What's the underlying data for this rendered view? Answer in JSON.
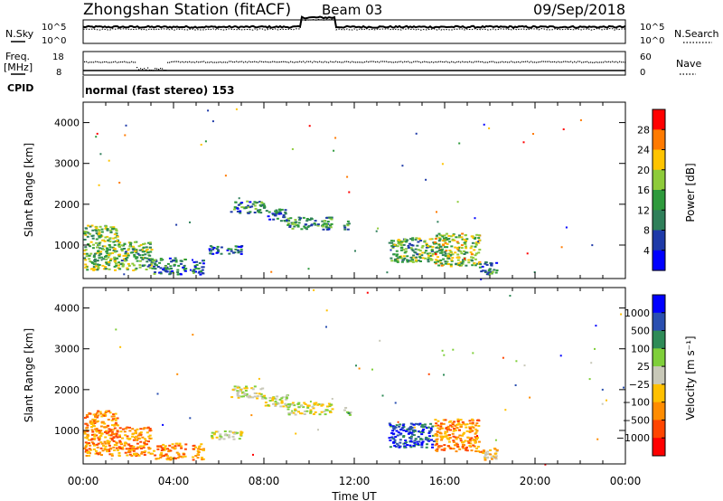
{
  "header": {
    "title": "Zhongshan Station (fitACF)",
    "beam": "Beam 03",
    "date": "09/Sep/2018"
  },
  "status_panels": {
    "nsky_label": "N.Sky",
    "nsky_ticks": [
      "10^5",
      "10^0"
    ],
    "nsearch_label": "N.Search",
    "nsearch_ticks": [
      "10^5",
      "10^0"
    ],
    "freq_label": "Freq.",
    "freq_unit": "[MHz]",
    "freq_ticks": [
      "18",
      "8"
    ],
    "nave_label": "Nave",
    "nave_ticks": [
      "60",
      "0"
    ],
    "cpid_label": "CPID",
    "cpid_value": "normal (fast stereo) 153"
  },
  "colors": {
    "power": [
      "#0000ff",
      "#1e3aa8",
      "#2f7f5a",
      "#2e9a3c",
      "#8ecb3a",
      "#ffc400",
      "#ff7a00",
      "#ff0000"
    ],
    "velocity": [
      "#0000ff",
      "#2a4fb0",
      "#2e8b57",
      "#7fcf3a",
      "#c8c8b8",
      "#ffc000",
      "#ff8c00",
      "#ff4500",
      "#ff0000"
    ]
  },
  "chart_data": [
    {
      "type": "line",
      "panel": "N.Sky / N.Search",
      "yscale": "log",
      "ylim_left": [
        1,
        100000
      ],
      "ylim_right": [
        1,
        100000
      ]
    },
    {
      "type": "scatter",
      "panel": "Freq. / Nave",
      "ylim_left": [
        8,
        18
      ],
      "ylim_right": [
        0,
        60
      ]
    },
    {
      "type": "heatmap",
      "panel": "power",
      "xlabel": "Time UT",
      "ylabel": "Slant Range [km]",
      "x_ticks": [
        "00:00",
        "04:00",
        "08:00",
        "12:00",
        "16:00",
        "20:00",
        "00:00"
      ],
      "y_ticks": [
        1000,
        2000,
        3000,
        4000
      ],
      "ylim": [
        180,
        4500
      ],
      "xlim_hours": [
        0,
        24
      ],
      "colorbar_label": "Power [dB]",
      "colorbar_ticks": [
        "4",
        "8",
        "12",
        "16",
        "20",
        "24",
        "28"
      ],
      "colorbar_range": [
        0,
        32
      ],
      "blobs": [
        {
          "t0": 0.0,
          "t1": 1.5,
          "r0": 400,
          "r1": 1500,
          "level": 0.5
        },
        {
          "t0": 1.5,
          "t1": 3.0,
          "r0": 400,
          "r1": 1100,
          "level": 0.45
        },
        {
          "t0": 3.0,
          "t1": 4.5,
          "r0": 300,
          "r1": 700,
          "level": 0.3
        },
        {
          "t0": 4.8,
          "t1": 5.3,
          "r0": 300,
          "r1": 700,
          "level": 0.2
        },
        {
          "t0": 5.5,
          "t1": 7.0,
          "r0": 800,
          "r1": 1000,
          "level": 0.2
        },
        {
          "t0": 6.5,
          "t1": 8.0,
          "r0": 1800,
          "r1": 2100,
          "level": 0.3
        },
        {
          "t0": 8.0,
          "t1": 9.0,
          "r0": 1600,
          "r1": 1900,
          "level": 0.2
        },
        {
          "t0": 9.0,
          "t1": 11.0,
          "r0": 1400,
          "r1": 1700,
          "level": 0.35
        },
        {
          "t0": 11.5,
          "t1": 11.8,
          "r0": 1400,
          "r1": 1600,
          "level": 0.4
        },
        {
          "t0": 13.5,
          "t1": 15.5,
          "r0": 600,
          "r1": 1200,
          "level": 0.45
        },
        {
          "t0": 15.5,
          "t1": 17.5,
          "r0": 500,
          "r1": 1300,
          "level": 0.55
        },
        {
          "t0": 17.5,
          "t1": 18.3,
          "r0": 300,
          "r1": 600,
          "level": 0.25
        }
      ]
    },
    {
      "type": "heatmap",
      "panel": "velocity",
      "xlabel": "Time UT",
      "ylabel": "Slant Range [km]",
      "x_ticks": [
        "00:00",
        "04:00",
        "08:00",
        "12:00",
        "16:00",
        "20:00",
        "00:00"
      ],
      "y_ticks": [
        1000,
        2000,
        3000,
        4000
      ],
      "ylim": [
        180,
        4500
      ],
      "xlim_hours": [
        0,
        24
      ],
      "colorbar_label": "Velocity [m s⁻¹]",
      "colorbar_ticks": [
        "1000",
        "500",
        "100",
        "25",
        "−25",
        "−100",
        "−500",
        "−1000"
      ],
      "blobs": [
        {
          "t0": 0.0,
          "t1": 1.5,
          "r0": 400,
          "r1": 1500,
          "level": 6
        },
        {
          "t0": 1.5,
          "t1": 3.0,
          "r0": 400,
          "r1": 1100,
          "level": 6
        },
        {
          "t0": 3.0,
          "t1": 4.5,
          "r0": 300,
          "r1": 700,
          "level": 6
        },
        {
          "t0": 4.8,
          "t1": 5.3,
          "r0": 300,
          "r1": 700,
          "level": 6
        },
        {
          "t0": 5.5,
          "t1": 7.0,
          "r0": 800,
          "r1": 1000,
          "level": 4
        },
        {
          "t0": 6.5,
          "t1": 8.0,
          "r0": 1800,
          "r1": 2100,
          "level": 4
        },
        {
          "t0": 8.0,
          "t1": 9.0,
          "r0": 1600,
          "r1": 1900,
          "level": 4
        },
        {
          "t0": 9.0,
          "t1": 11.0,
          "r0": 1400,
          "r1": 1700,
          "level": 4
        },
        {
          "t0": 11.5,
          "t1": 11.8,
          "r0": 1400,
          "r1": 1600,
          "level": 3
        },
        {
          "t0": 13.5,
          "t1": 15.5,
          "r0": 600,
          "r1": 1200,
          "level": 1
        },
        {
          "t0": 15.5,
          "t1": 17.5,
          "r0": 500,
          "r1": 1300,
          "level": 6
        },
        {
          "t0": 17.5,
          "t1": 18.3,
          "r0": 300,
          "r1": 600,
          "level": 5
        }
      ]
    }
  ]
}
